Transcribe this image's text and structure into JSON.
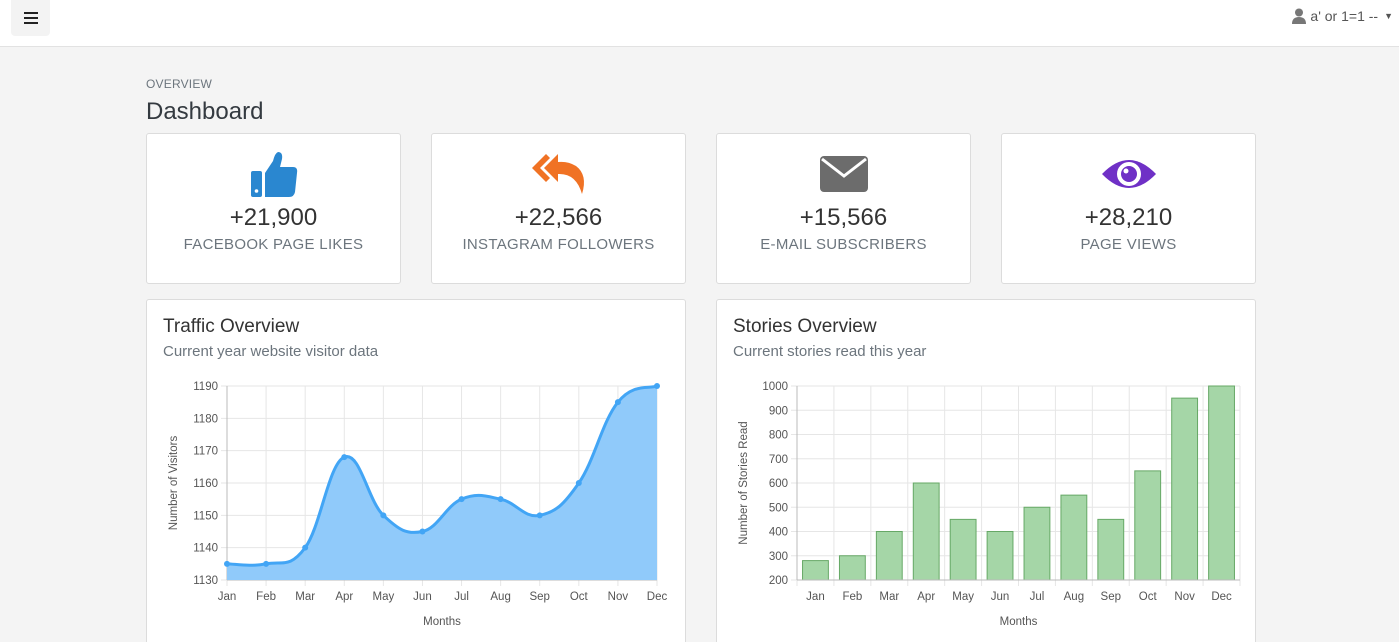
{
  "header": {
    "user_label": "a' or 1=1 --"
  },
  "overview_label": "OVERVIEW",
  "page_title": "Dashboard",
  "stats": [
    {
      "value": "+21,900",
      "label": "FACEBOOK PAGE LIKES",
      "icon": "thumbs-up-icon",
      "color": "#2a87d0"
    },
    {
      "value": "+22,566",
      "label": "INSTAGRAM FOLLOWERS",
      "icon": "reply-all-icon",
      "color": "#f07224"
    },
    {
      "value": "+15,566",
      "label": "E-MAIL SUBSCRIBERS",
      "icon": "envelope-icon",
      "color": "#6c6c6c"
    },
    {
      "value": "+28,210",
      "label": "PAGE VIEWS",
      "icon": "eye-icon",
      "color": "#6f30c6"
    }
  ],
  "traffic": {
    "title": "Traffic Overview",
    "subtitle": "Current year website visitor data"
  },
  "stories": {
    "title": "Stories Overview",
    "subtitle": "Current stories read this year"
  },
  "chart_data": [
    {
      "type": "area",
      "title": "Traffic Overview",
      "subtitle": "Current year website visitor data",
      "xlabel": "Months",
      "ylabel": "Number of Visitors",
      "categories": [
        "Jan",
        "Feb",
        "Mar",
        "Apr",
        "May",
        "Jun",
        "Jul",
        "Aug",
        "Sep",
        "Oct",
        "Nov",
        "Dec"
      ],
      "values": [
        1135,
        1135,
        1140,
        1168,
        1150,
        1145,
        1155,
        1155,
        1150,
        1160,
        1185,
        1190
      ],
      "ylim": [
        1130,
        1190
      ],
      "yticks": [
        1130,
        1140,
        1150,
        1160,
        1170,
        1180,
        1190
      ],
      "grid": true,
      "line_color": "#42a5f5",
      "fill_color": "#90cafa"
    },
    {
      "type": "bar",
      "title": "Stories Overview",
      "subtitle": "Current stories read this year",
      "xlabel": "Months",
      "ylabel": "Number of Stories Read",
      "categories": [
        "Jan",
        "Feb",
        "Mar",
        "Apr",
        "May",
        "Jun",
        "Jul",
        "Aug",
        "Sep",
        "Oct",
        "Nov",
        "Dec"
      ],
      "values": [
        280,
        300,
        400,
        600,
        450,
        400,
        500,
        550,
        450,
        650,
        950,
        1000
      ],
      "ylim": [
        200,
        1000
      ],
      "yticks": [
        200,
        300,
        400,
        500,
        600,
        700,
        800,
        900,
        1000
      ],
      "grid": true,
      "bar_color": "#a5d6a7",
      "bar_border": "#66a866"
    }
  ]
}
